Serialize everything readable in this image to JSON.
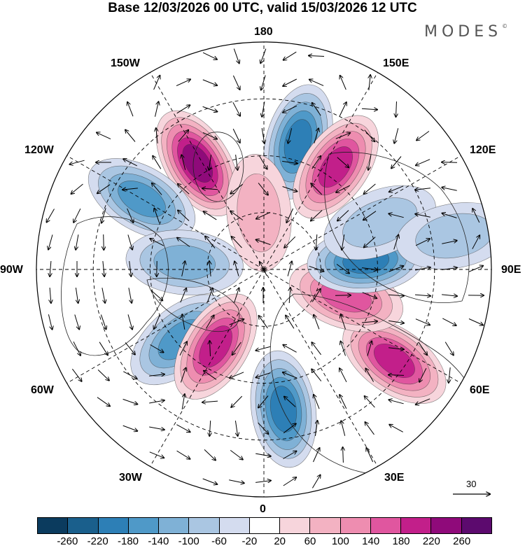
{
  "title": "Base 12/03/2026 00 UTC, valid 15/03/2026 12 UTC",
  "brand": "MODES",
  "brand_mark": "©",
  "longitude_labels": {
    "top": "180",
    "bottom": "0",
    "left": "90W",
    "right": "90E",
    "upper_left_1": "150W",
    "upper_left_2": "120W",
    "upper_right_1": "150E",
    "upper_right_2": "120E",
    "lower_left_1": "60W",
    "lower_left_2": "30W",
    "lower_right_1": "60E",
    "lower_right_2": "30E"
  },
  "reference_vector": {
    "label": "30"
  },
  "colorbar": {
    "colors": [
      "#0b3b5e",
      "#1a5f8c",
      "#2d7fb6",
      "#4f99c8",
      "#7fb1d6",
      "#aac6e2",
      "#d4dcef",
      "#ffffff",
      "#f7d5dc",
      "#f3b2c2",
      "#ee8db0",
      "#e0569f",
      "#c21f8a",
      "#8f0a7a",
      "#5c0a6e"
    ],
    "tick_labels": [
      "-260",
      "-220",
      "-180",
      "-140",
      "-100",
      "-60",
      "-20",
      "20",
      "60",
      "100",
      "140",
      "180",
      "220",
      "260"
    ]
  },
  "anomalies": [
    {
      "lon": 165,
      "colat": 0.58,
      "value": -180
    },
    {
      "lon": 145,
      "colat": 0.55,
      "value": 180
    },
    {
      "lon": -148,
      "colat": 0.55,
      "value": 220
    },
    {
      "lon": -120,
      "colat": 0.62,
      "value": -140
    },
    {
      "lon": -95,
      "colat": 0.35,
      "value": -100
    },
    {
      "lon": -50,
      "colat": 0.48,
      "value": -140
    },
    {
      "lon": -32,
      "colat": 0.4,
      "value": 180
    },
    {
      "lon": 8,
      "colat": 0.62,
      "value": -180
    },
    {
      "lon": 55,
      "colat": 0.7,
      "value": 180
    },
    {
      "lon": 72,
      "colat": 0.38,
      "value": 140
    },
    {
      "lon": 95,
      "colat": 0.45,
      "value": -180
    },
    {
      "lon": 112,
      "colat": 0.55,
      "value": -60
    },
    {
      "lon": -175,
      "colat": 0.25,
      "value": 60
    },
    {
      "lon": 100,
      "colat": 0.85,
      "value": -60
    }
  ]
}
